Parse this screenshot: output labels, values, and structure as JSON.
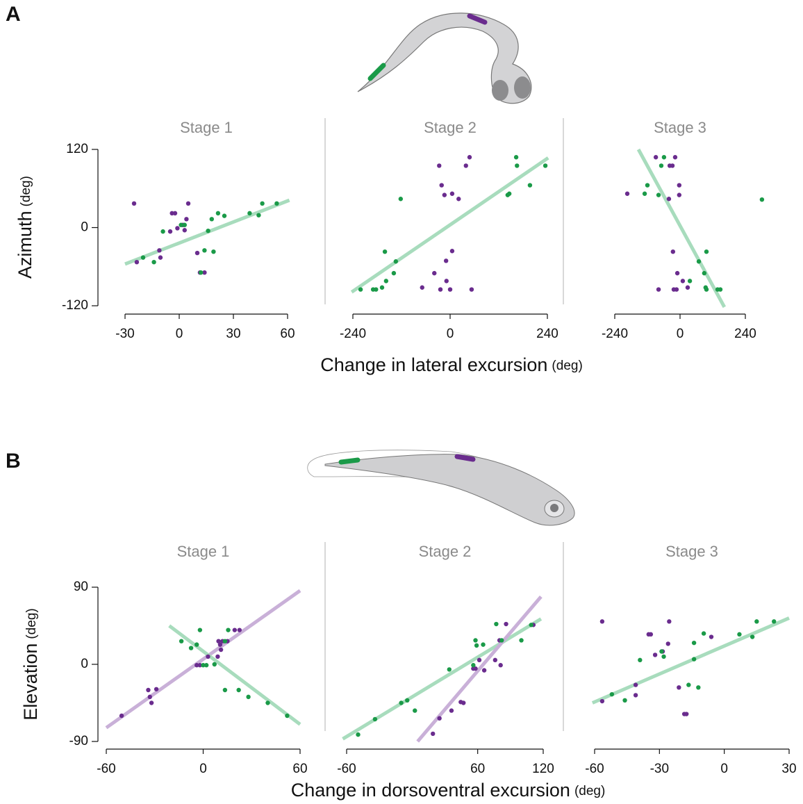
{
  "panel_labels": [
    "A",
    "B"
  ],
  "figures": [
    {
      "y_label": "Azimuth",
      "y_unit": "(deg)",
      "x_label": "Change in lateral excursion",
      "x_unit": "(deg)"
    },
    {
      "y_label": "Elevation",
      "y_unit": "(deg)",
      "x_label": "Change in dorsoventral excursion",
      "x_unit": "(deg)"
    }
  ],
  "chart_data": [
    {
      "type": "scatter",
      "title": "Stage 1",
      "xlim": [
        -30,
        60
      ],
      "xticks": [
        -30,
        0,
        30,
        60
      ],
      "ylim": [
        -120,
        120
      ],
      "yticks": [
        -120,
        0,
        120
      ],
      "series": [
        {
          "color": "#6a2c8e",
          "x": [
            -25,
            -23.5,
            -10.4,
            -11,
            -4,
            -2.3,
            -5,
            -1,
            2,
            3,
            4,
            5,
            10,
            11.5,
            14
          ],
          "y": [
            37,
            -53,
            -46,
            -35,
            22,
            22,
            -6,
            -1,
            4,
            -4,
            13,
            37,
            -39,
            -69,
            -69
          ]
        },
        {
          "color": "#1a9a48",
          "x": [
            -20,
            -14,
            -9,
            1,
            3,
            16,
            14,
            18,
            19,
            21.5,
            25,
            39,
            44,
            46,
            54,
            12
          ],
          "y": [
            -46,
            -53,
            -6,
            4,
            4,
            -5,
            -35,
            13,
            -37,
            22,
            18,
            22,
            19,
            37,
            37,
            -69
          ]
        }
      ],
      "fit_lines": [
        {
          "color": "#a8dcbd",
          "x": [
            -30,
            61
          ],
          "y": [
            -56,
            42
          ]
        }
      ]
    },
    {
      "type": "scatter",
      "title": "Stage 2",
      "xlim": [
        -240,
        240
      ],
      "xticks": [
        -240,
        0,
        240
      ],
      "ylim": [
        -120,
        120
      ],
      "series": [
        {
          "color": "#6a2c8e",
          "x": [
            -27,
            48,
            39,
            -21,
            -14,
            5,
            21,
            -10,
            5,
            -39,
            -69,
            -24,
            -9,
            0,
            53
          ],
          "y": [
            95,
            108,
            95,
            65,
            50,
            52,
            44,
            -51,
            -36,
            -70,
            -92,
            -95,
            -82,
            -95,
            -95
          ]
        },
        {
          "color": "#1a9a48",
          "x": [
            163,
            165,
            235,
            197,
            146,
            142,
            -122,
            -161,
            -134,
            -139,
            -158,
            -168,
            -183,
            -190,
            -221
          ],
          "y": [
            108,
            95,
            95,
            65,
            52,
            50,
            44,
            -37,
            -52,
            -70,
            -82,
            -92,
            -95,
            -95,
            -95
          ]
        }
      ],
      "fit_lines": [
        {
          "color": "#a8dcbd",
          "x": [
            -243,
            242
          ],
          "y": [
            -99,
            107
          ]
        }
      ]
    },
    {
      "type": "scatter",
      "title": "Stage 3",
      "xlim": [
        -240,
        240
      ],
      "xticks": [
        -240,
        0,
        240
      ],
      "ylim": [
        -120,
        120
      ],
      "series": [
        {
          "color": "#6a2c8e",
          "x": [
            -89,
            -38,
            -28,
            -18,
            -3,
            -3,
            -194,
            -41,
            -26,
            -10,
            10,
            28,
            -79,
            -23,
            -13
          ],
          "y": [
            108,
            95,
            95,
            108,
            65,
            50,
            52,
            44,
            -37,
            -70,
            -82,
            -92,
            -95,
            -95,
            -95
          ]
        },
        {
          "color": "#1a9a48",
          "x": [
            -59,
            -69,
            -120,
            -130,
            -79,
            301,
            97,
            69,
            89,
            94,
            97,
            138,
            148,
            36
          ],
          "y": [
            108,
            95,
            65,
            52,
            50,
            43,
            -37,
            -52,
            -70,
            -92,
            -95,
            -95,
            -95,
            -82
          ]
        }
      ],
      "fit_lines": [
        {
          "color": "#a8dcbd",
          "x": [
            -153,
            163
          ],
          "y": [
            120,
            -122
          ]
        }
      ]
    },
    {
      "type": "scatter",
      "title": "Stage 1",
      "xlim": [
        -60,
        60
      ],
      "xticks": [
        -60,
        0,
        60
      ],
      "ylim": [
        -90,
        90
      ],
      "yticks": [
        -90,
        0,
        90
      ],
      "series": [
        {
          "color": "#6a2c8e",
          "x": [
            -50.5,
            -34,
            -33,
            -32,
            -29,
            -4,
            -2,
            3,
            9,
            9.5,
            10.5,
            11,
            12,
            15,
            19.5,
            22.5
          ],
          "y": [
            -60,
            -30,
            -38,
            -45,
            -29,
            -1,
            -1,
            9,
            9,
            27,
            23,
            17,
            27,
            27,
            40,
            40
          ]
        },
        {
          "color": "#1a9a48",
          "x": [
            -13.5,
            -7.5,
            -4,
            -2,
            0,
            2,
            7,
            13.5,
            15.5,
            13.5,
            22,
            28,
            40,
            52
          ],
          "y": [
            27,
            19,
            23,
            40,
            -1,
            -1,
            0,
            27,
            40,
            -30,
            -30,
            -38,
            -45,
            -60
          ]
        }
      ],
      "fit_lines": [
        {
          "color": "#c9b0d8",
          "x": [
            -60,
            60
          ],
          "y": [
            -74,
            86
          ]
        },
        {
          "color": "#a8dcbd",
          "x": [
            -21,
            60
          ],
          "y": [
            45,
            -70
          ]
        }
      ]
    },
    {
      "type": "scatter",
      "title": "Stage 2",
      "xlim": [
        -60,
        120
      ],
      "xticks": [
        -60,
        60,
        120
      ],
      "ylim": [
        -90,
        90
      ],
      "series": [
        {
          "color": "#6a2c8e",
          "x": [
            19,
            25,
            36,
            44.5,
            47,
            56,
            58,
            61.5,
            66,
            76,
            80,
            81,
            86,
            111
          ],
          "y": [
            -81,
            -63,
            -54,
            -44,
            -45,
            -5,
            -5,
            5,
            -7,
            5,
            28,
            -1,
            47,
            46
          ]
        },
        {
          "color": "#1a9a48",
          "x": [
            -49.5,
            -34,
            -10,
            -4.5,
            2.5,
            34,
            56,
            58,
            59,
            65,
            77,
            82,
            100,
            109
          ],
          "y": [
            -82,
            -64,
            -45,
            -42,
            -54,
            -6,
            -1,
            28,
            22,
            23,
            47,
            28,
            28,
            46
          ]
        }
      ],
      "fit_lines": [
        {
          "color": "#a8dcbd",
          "x": [
            -63.5,
            118
          ],
          "y": [
            -87,
            53
          ]
        },
        {
          "color": "#c9b0d8",
          "x": [
            5,
            118
          ],
          "y": [
            -90,
            79
          ]
        }
      ]
    },
    {
      "type": "scatter",
      "title": "Stage 3",
      "xlim": [
        -60,
        30
      ],
      "xticks": [
        -60,
        -30,
        0,
        30
      ],
      "ylim": [
        -90,
        90
      ],
      "series": [
        {
          "color": "#6a2c8e",
          "x": [
            -56.5,
            -56.5,
            -41,
            -41,
            -35,
            -34,
            -32,
            -28.5,
            -26,
            -25.5,
            -21,
            -18.5,
            -17.5,
            -6
          ],
          "y": [
            -43,
            50,
            -36,
            -24,
            35,
            35,
            11,
            15,
            24,
            50,
            -27,
            -58,
            -58,
            32
          ]
        },
        {
          "color": "#1a9a48",
          "x": [
            -52,
            -46,
            -39,
            -29,
            -28,
            -16.5,
            -14,
            -14,
            -12,
            -9.5,
            7,
            13,
            15,
            23
          ],
          "y": [
            -35,
            -42,
            5,
            15,
            9,
            -24,
            6,
            25,
            -27,
            36,
            35,
            32,
            50,
            50
          ]
        }
      ],
      "fit_lines": [
        {
          "color": "#a8dcbd",
          "x": [
            -61,
            30
          ],
          "y": [
            -45,
            54
          ]
        }
      ]
    }
  ]
}
